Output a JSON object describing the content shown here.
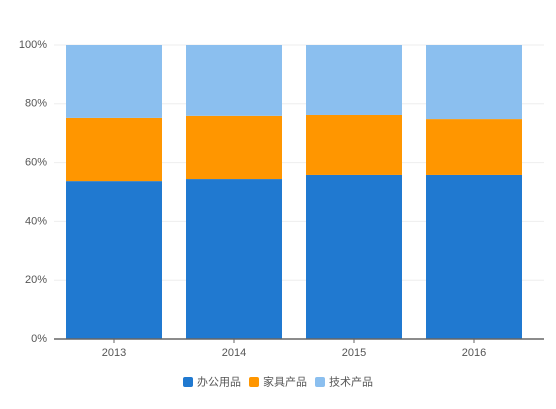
{
  "chart_data": {
    "type": "stacked_bar_percent",
    "categories": [
      "2013",
      "2014",
      "2015",
      "2016"
    ],
    "series": [
      {
        "name": "办公用品",
        "color": "#2079d0",
        "values": [
          53.7,
          54.4,
          55.8,
          55.8
        ]
      },
      {
        "name": "家具产品",
        "color": "#ff9600",
        "values": [
          21.5,
          21.5,
          20.4,
          19.0
        ]
      },
      {
        "name": "技术产品",
        "color": "#8bbfef",
        "values": [
          24.8,
          24.1,
          23.8,
          25.2
        ]
      }
    ],
    "ylim": [
      0,
      100
    ],
    "yticks": [
      {
        "value": 0,
        "label": "0%"
      },
      {
        "value": 20,
        "label": "20%"
      },
      {
        "value": 40,
        "label": "40%"
      },
      {
        "value": 60,
        "label": "60%"
      },
      {
        "value": 80,
        "label": "80%"
      },
      {
        "value": 100,
        "label": "100%"
      }
    ],
    "grid": true
  }
}
